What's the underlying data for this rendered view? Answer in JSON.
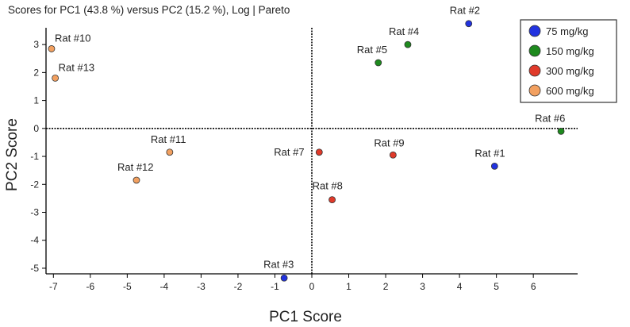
{
  "chart_data": {
    "type": "scatter",
    "title": "Scores for PC1 (43.8 %) versus PC2 (15.2 %), Log | Pareto",
    "xlabel": "PC1 Score",
    "ylabel": "PC2 Score",
    "xlim": [
      -7.2,
      7.2
    ],
    "ylim": [
      -5.2,
      3.6
    ],
    "xticks": [
      -7,
      -6,
      -5,
      -4,
      -3,
      -2,
      -1,
      0,
      1,
      2,
      3,
      4,
      5,
      6
    ],
    "yticks": [
      -5,
      -4,
      -3,
      -2,
      -1,
      0,
      1,
      2,
      3
    ],
    "grid": false,
    "legend_position": "top-right",
    "series": [
      {
        "name": "75 mg/kg",
        "color": "#2233e0",
        "points": [
          {
            "label": "Rat #1",
            "x": 4.95,
            "y": -1.35
          },
          {
            "label": "Rat #2",
            "x": 4.25,
            "y": 3.75
          },
          {
            "label": "Rat #3",
            "x": -0.75,
            "y": -5.35
          }
        ]
      },
      {
        "name": "150 mg/kg",
        "color": "#1e8a1e",
        "points": [
          {
            "label": "Rat #4",
            "x": 2.6,
            "y": 3.0
          },
          {
            "label": "Rat #5",
            "x": 1.8,
            "y": 2.35
          },
          {
            "label": "Rat #6",
            "x": 6.75,
            "y": -0.1
          }
        ]
      },
      {
        "name": "300 mg/kg",
        "color": "#e03a2a",
        "points": [
          {
            "label": "Rat #7",
            "x": 0.2,
            "y": -0.85
          },
          {
            "label": "Rat #8",
            "x": 0.55,
            "y": -2.55
          },
          {
            "label": "Rat #9",
            "x": 2.2,
            "y": -0.95
          }
        ]
      },
      {
        "name": "600 mg/kg",
        "color": "#f2a060",
        "points": [
          {
            "label": "Rat #10",
            "x": -7.05,
            "y": 2.85
          },
          {
            "label": "Rat #11",
            "x": -3.85,
            "y": -0.85
          },
          {
            "label": "Rat #12",
            "x": -4.75,
            "y": -1.85
          },
          {
            "label": "Rat #13",
            "x": -6.95,
            "y": 1.8
          }
        ]
      }
    ]
  }
}
